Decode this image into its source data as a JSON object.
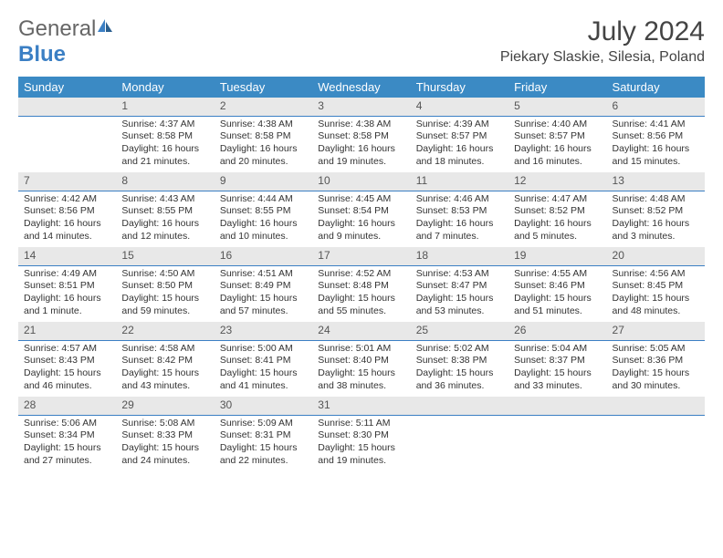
{
  "logo": {
    "part1": "General",
    "part2": "Blue"
  },
  "title": "July 2024",
  "location": "Piekary Slaskie, Silesia, Poland",
  "colors": {
    "header_bg": "#3b8ac4",
    "header_fg": "#ffffff",
    "daynum_bg": "#e8e8e8",
    "rule": "#3b7fc4"
  },
  "daysOfWeek": [
    "Sunday",
    "Monday",
    "Tuesday",
    "Wednesday",
    "Thursday",
    "Friday",
    "Saturday"
  ],
  "startOffset": 1,
  "days": [
    {
      "n": 1,
      "sr": "4:37 AM",
      "ss": "8:58 PM",
      "dl": "16 hours and 21 minutes."
    },
    {
      "n": 2,
      "sr": "4:38 AM",
      "ss": "8:58 PM",
      "dl": "16 hours and 20 minutes."
    },
    {
      "n": 3,
      "sr": "4:38 AM",
      "ss": "8:58 PM",
      "dl": "16 hours and 19 minutes."
    },
    {
      "n": 4,
      "sr": "4:39 AM",
      "ss": "8:57 PM",
      "dl": "16 hours and 18 minutes."
    },
    {
      "n": 5,
      "sr": "4:40 AM",
      "ss": "8:57 PM",
      "dl": "16 hours and 16 minutes."
    },
    {
      "n": 6,
      "sr": "4:41 AM",
      "ss": "8:56 PM",
      "dl": "16 hours and 15 minutes."
    },
    {
      "n": 7,
      "sr": "4:42 AM",
      "ss": "8:56 PM",
      "dl": "16 hours and 14 minutes."
    },
    {
      "n": 8,
      "sr": "4:43 AM",
      "ss": "8:55 PM",
      "dl": "16 hours and 12 minutes."
    },
    {
      "n": 9,
      "sr": "4:44 AM",
      "ss": "8:55 PM",
      "dl": "16 hours and 10 minutes."
    },
    {
      "n": 10,
      "sr": "4:45 AM",
      "ss": "8:54 PM",
      "dl": "16 hours and 9 minutes."
    },
    {
      "n": 11,
      "sr": "4:46 AM",
      "ss": "8:53 PM",
      "dl": "16 hours and 7 minutes."
    },
    {
      "n": 12,
      "sr": "4:47 AM",
      "ss": "8:52 PM",
      "dl": "16 hours and 5 minutes."
    },
    {
      "n": 13,
      "sr": "4:48 AM",
      "ss": "8:52 PM",
      "dl": "16 hours and 3 minutes."
    },
    {
      "n": 14,
      "sr": "4:49 AM",
      "ss": "8:51 PM",
      "dl": "16 hours and 1 minute."
    },
    {
      "n": 15,
      "sr": "4:50 AM",
      "ss": "8:50 PM",
      "dl": "15 hours and 59 minutes."
    },
    {
      "n": 16,
      "sr": "4:51 AM",
      "ss": "8:49 PM",
      "dl": "15 hours and 57 minutes."
    },
    {
      "n": 17,
      "sr": "4:52 AM",
      "ss": "8:48 PM",
      "dl": "15 hours and 55 minutes."
    },
    {
      "n": 18,
      "sr": "4:53 AM",
      "ss": "8:47 PM",
      "dl": "15 hours and 53 minutes."
    },
    {
      "n": 19,
      "sr": "4:55 AM",
      "ss": "8:46 PM",
      "dl": "15 hours and 51 minutes."
    },
    {
      "n": 20,
      "sr": "4:56 AM",
      "ss": "8:45 PM",
      "dl": "15 hours and 48 minutes."
    },
    {
      "n": 21,
      "sr": "4:57 AM",
      "ss": "8:43 PM",
      "dl": "15 hours and 46 minutes."
    },
    {
      "n": 22,
      "sr": "4:58 AM",
      "ss": "8:42 PM",
      "dl": "15 hours and 43 minutes."
    },
    {
      "n": 23,
      "sr": "5:00 AM",
      "ss": "8:41 PM",
      "dl": "15 hours and 41 minutes."
    },
    {
      "n": 24,
      "sr": "5:01 AM",
      "ss": "8:40 PM",
      "dl": "15 hours and 38 minutes."
    },
    {
      "n": 25,
      "sr": "5:02 AM",
      "ss": "8:38 PM",
      "dl": "15 hours and 36 minutes."
    },
    {
      "n": 26,
      "sr": "5:04 AM",
      "ss": "8:37 PM",
      "dl": "15 hours and 33 minutes."
    },
    {
      "n": 27,
      "sr": "5:05 AM",
      "ss": "8:36 PM",
      "dl": "15 hours and 30 minutes."
    },
    {
      "n": 28,
      "sr": "5:06 AM",
      "ss": "8:34 PM",
      "dl": "15 hours and 27 minutes."
    },
    {
      "n": 29,
      "sr": "5:08 AM",
      "ss": "8:33 PM",
      "dl": "15 hours and 24 minutes."
    },
    {
      "n": 30,
      "sr": "5:09 AM",
      "ss": "8:31 PM",
      "dl": "15 hours and 22 minutes."
    },
    {
      "n": 31,
      "sr": "5:11 AM",
      "ss": "8:30 PM",
      "dl": "15 hours and 19 minutes."
    }
  ],
  "labels": {
    "sunrise": "Sunrise:",
    "sunset": "Sunset:",
    "daylight": "Daylight:"
  }
}
